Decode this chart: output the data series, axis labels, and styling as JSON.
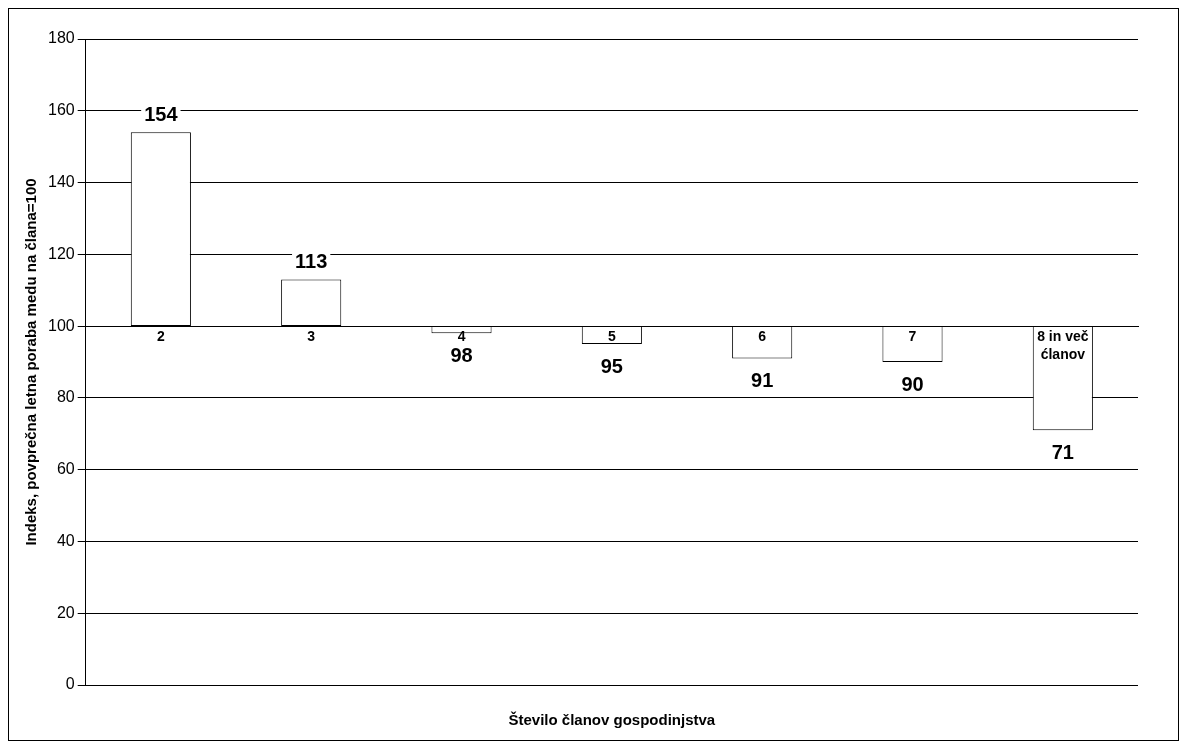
{
  "chart_data": {
    "type": "bar",
    "xlabel": "Število članov gospodinjstva",
    "ylabel": "Indeks, povprečna letna poraba medu na člana=100",
    "categories": [
      "2",
      "3",
      "4",
      "5",
      "6",
      "7",
      "8 in več ćlanov"
    ],
    "base": [
      100,
      100,
      100,
      100,
      100,
      100,
      100
    ],
    "values": [
      54,
      13,
      -2,
      -5,
      -9,
      -10,
      -29
    ],
    "value_labels": [
      "154",
      "113",
      "98",
      "95",
      "91",
      "90",
      "71"
    ],
    "color": "#ffffff",
    "ylim": [
      0,
      180
    ],
    "yticks": [
      0,
      20,
      40,
      60,
      80,
      100,
      120,
      140,
      160,
      180
    ],
    "grid": "y"
  }
}
